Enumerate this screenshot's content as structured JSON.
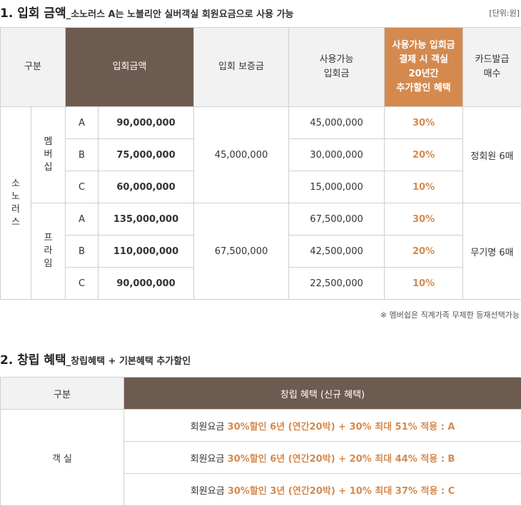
{
  "section1": {
    "title_main": "1. 입회 금액",
    "title_sub": "_소노러스 A는 노블리안 실버객실 회원요금으로 사용 가능",
    "unit": "[단위:원]",
    "headers": [
      "구분",
      "입회금액",
      "입회 보증금",
      "사용가능\n입회금",
      "사용가능 입회금\n결제 시 객실\n20년간\n추가할인 혜택",
      "카드발급\n매수"
    ],
    "group": "소\n노\n러\n스",
    "membership": {
      "label": "멤\n버\n십",
      "deposit": "45,000,000",
      "cards": "정회원 6매",
      "rows": [
        {
          "grade": "A",
          "amount": "90,000,000",
          "usable": "45,000,000",
          "discount": "30%"
        },
        {
          "grade": "B",
          "amount": "75,000,000",
          "usable": "30,000,000",
          "discount": "20%"
        },
        {
          "grade": "C",
          "amount": "60,000,000",
          "usable": "15,000,000",
          "discount": "10%"
        }
      ]
    },
    "prime": {
      "label": "프\n라\n임",
      "deposit": "67,500,000",
      "cards": "무기명 6매",
      "rows": [
        {
          "grade": "A",
          "amount": "135,000,000",
          "usable": "67,500,000",
          "discount": "30%"
        },
        {
          "grade": "B",
          "amount": "110,000,000",
          "usable": "42,500,000",
          "discount": "20%"
        },
        {
          "grade": "C",
          "amount": "90,000,000",
          "usable": "22,500,000",
          "discount": "10%"
        }
      ]
    },
    "note": "※ 멤버쉽은 직계가족 무제한 등재선택가능"
  },
  "section2": {
    "title_main": "2. 창립 혜택",
    "title_sub": "_창립혜택 + 기본혜택 추가할인",
    "headers": [
      "구분",
      "창립 혜택 (신규 혜택)"
    ],
    "room": "객 실",
    "rows": [
      {
        "prefix": "회원요금 ",
        "hl": "30%할인",
        "mid": " 6년 (연간20박) + 30% 최대 51% 적용 : A"
      },
      {
        "prefix": "회원요금 ",
        "hl": "30%할인",
        "mid": " 6년 (연간20박) + 20% 최대 44% 적용 : B"
      },
      {
        "prefix": "회원요금 ",
        "hl": "30%할인",
        "mid": " 3년 (연간20박) + 10% 최대 37% 적용 : C"
      }
    ]
  }
}
